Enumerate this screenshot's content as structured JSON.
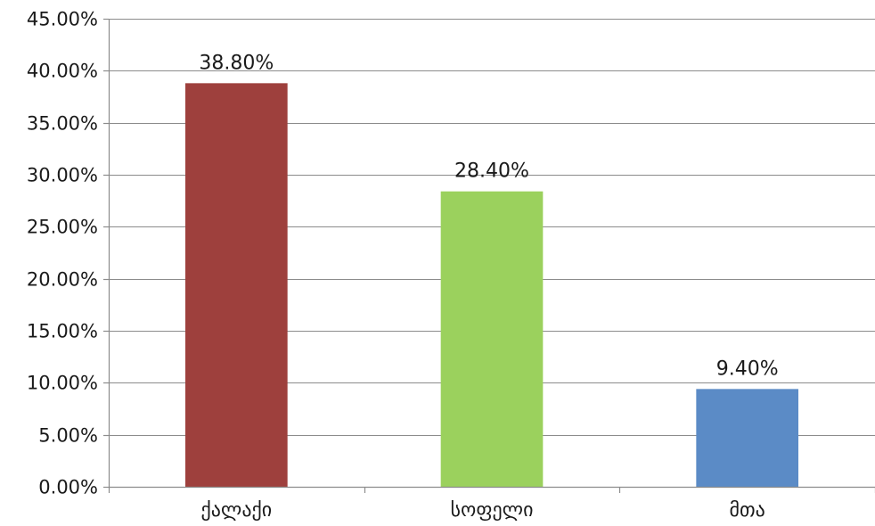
{
  "chart_data": {
    "type": "bar",
    "categories": [
      "ქალაქი",
      "სოფელი",
      "მთა"
    ],
    "values": [
      38.8,
      28.4,
      9.4
    ],
    "data_labels": [
      "38.80%",
      "28.40%",
      "9.40%"
    ],
    "colors": [
      "#9e403d",
      "#9bd15d",
      "#5b8bc6"
    ],
    "title": "",
    "xlabel": "",
    "ylabel": "",
    "ylim": [
      0,
      45
    ],
    "yticks": [
      0,
      5,
      10,
      15,
      20,
      25,
      30,
      35,
      40,
      45
    ],
    "ytick_labels": [
      "0.00%",
      "5.00%",
      "10.00%",
      "15.00%",
      "20.00%",
      "25.00%",
      "30.00%",
      "35.00%",
      "40.00%",
      "45.00%"
    ],
    "grid": true,
    "legend": "none"
  }
}
